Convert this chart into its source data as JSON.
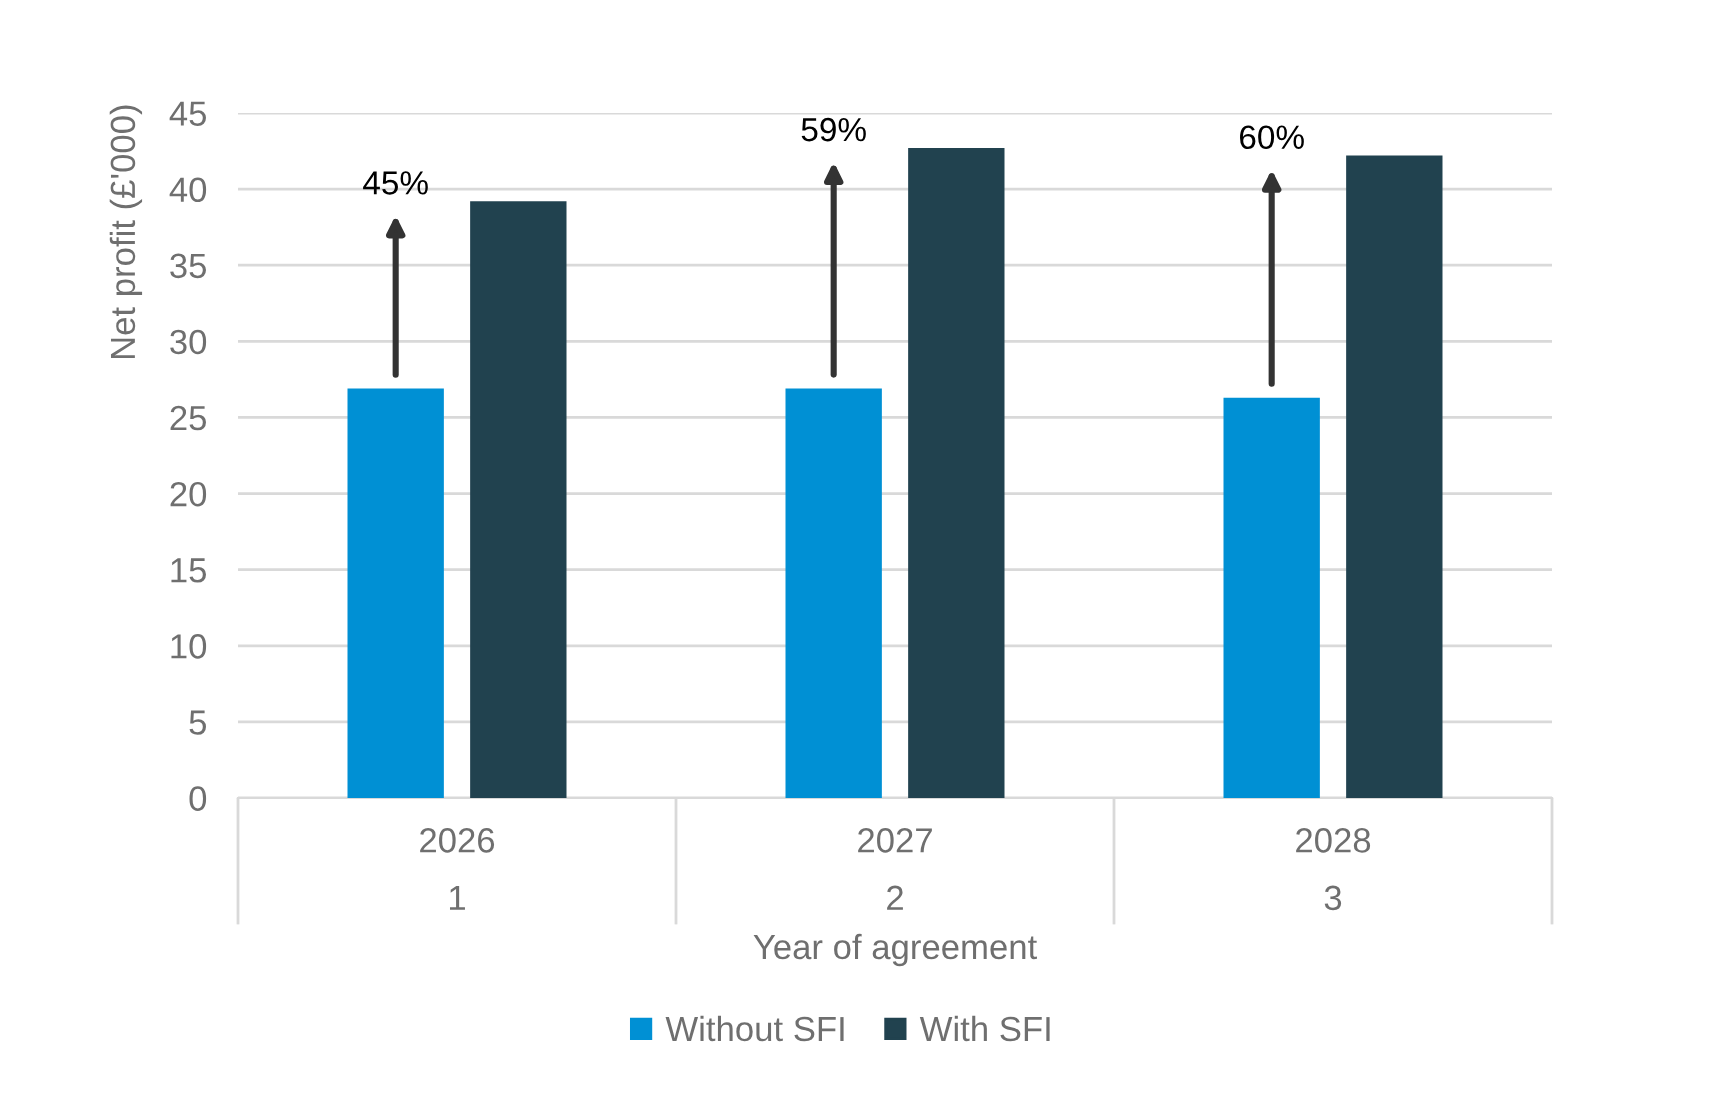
{
  "chart_data": {
    "type": "bar",
    "ylabel": "Net profit (£'000)",
    "xlabel": "Year of agreement",
    "categories": [
      "2026\n1",
      "2027\n2",
      "2028\n3"
    ],
    "series": [
      {
        "name": "Without SFI",
        "color": "#0090d4",
        "values": [
          26.9,
          26.9,
          26.3
        ]
      },
      {
        "name": "With SFI",
        "color": "#21424f",
        "values": [
          39.2,
          42.7,
          42.2
        ]
      }
    ],
    "ylim": [
      0,
      45
    ],
    "yticks": [
      0,
      5,
      10,
      15,
      20,
      25,
      30,
      35,
      40,
      45
    ],
    "grid": "y",
    "legend": "bottom",
    "annotations": [
      "45%",
      "59%",
      "60%"
    ]
  }
}
